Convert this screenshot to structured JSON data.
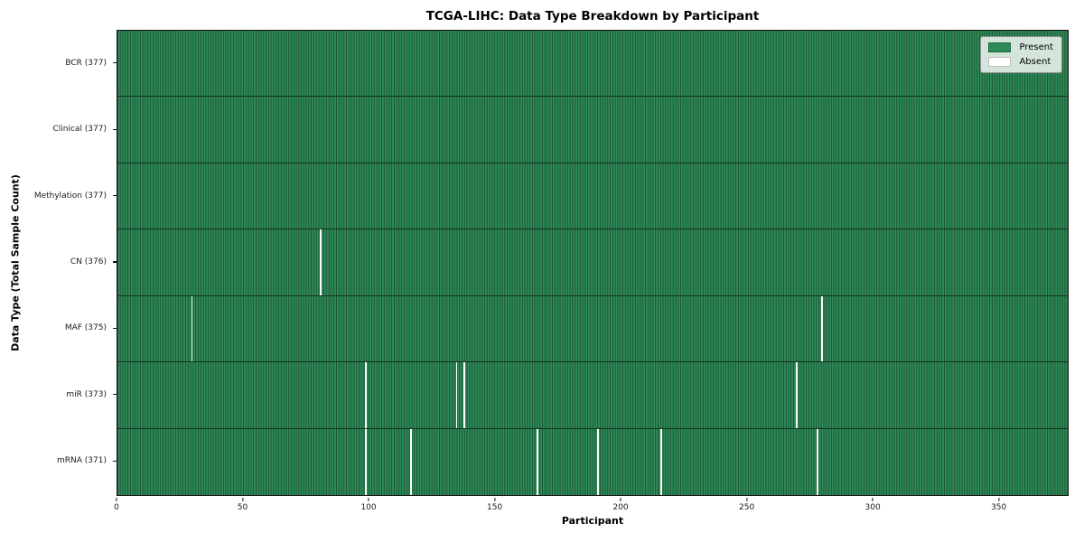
{
  "title": "TCGA-LIHC: Data Type Breakdown by Participant",
  "xlabel": "Participant",
  "ylabel": "Data Type (Total Sample Count)",
  "legend": {
    "present_label": "Present",
    "absent_label": "Absent"
  },
  "colors": {
    "present": "#2e8b57",
    "present_edge": "#1c5434",
    "absent": "#ffffff",
    "row_divider": "#13331f",
    "frame": "#141414",
    "legend_border": "#8f8f8f"
  },
  "chart_data": {
    "type": "heatmap",
    "title": "TCGA-LIHC: Data Type Breakdown by Participant",
    "xlabel": "Participant",
    "ylabel": "Data Type (Total Sample Count)",
    "legend_entries": [
      "Present",
      "Absent"
    ],
    "legend_position": "upper right",
    "n_participants": 377,
    "xlim": [
      0,
      377
    ],
    "x_ticks": [
      0,
      50,
      100,
      150,
      200,
      250,
      300,
      350
    ],
    "rows": [
      {
        "label": "BCR (377)",
        "data_type": "BCR",
        "total": 377,
        "absent_participants": []
      },
      {
        "label": "Clinical (377)",
        "data_type": "Clinical",
        "total": 377,
        "absent_participants": []
      },
      {
        "label": "Methylation (377)",
        "data_type": "Methylation",
        "total": 377,
        "absent_participants": []
      },
      {
        "label": "CN (376)",
        "data_type": "CN",
        "total": 376,
        "absent_participants": [
          80
        ]
      },
      {
        "label": "MAF (375)",
        "data_type": "MAF",
        "total": 375,
        "absent_participants": [
          29,
          279
        ]
      },
      {
        "label": "miR (373)",
        "data_type": "miR",
        "total": 373,
        "absent_participants": [
          98,
          134,
          137,
          269
        ]
      },
      {
        "label": "mRNA (371)",
        "data_type": "mRNA",
        "total": 371,
        "absent_participants": [
          98,
          116,
          166,
          190,
          215,
          277
        ]
      }
    ]
  }
}
